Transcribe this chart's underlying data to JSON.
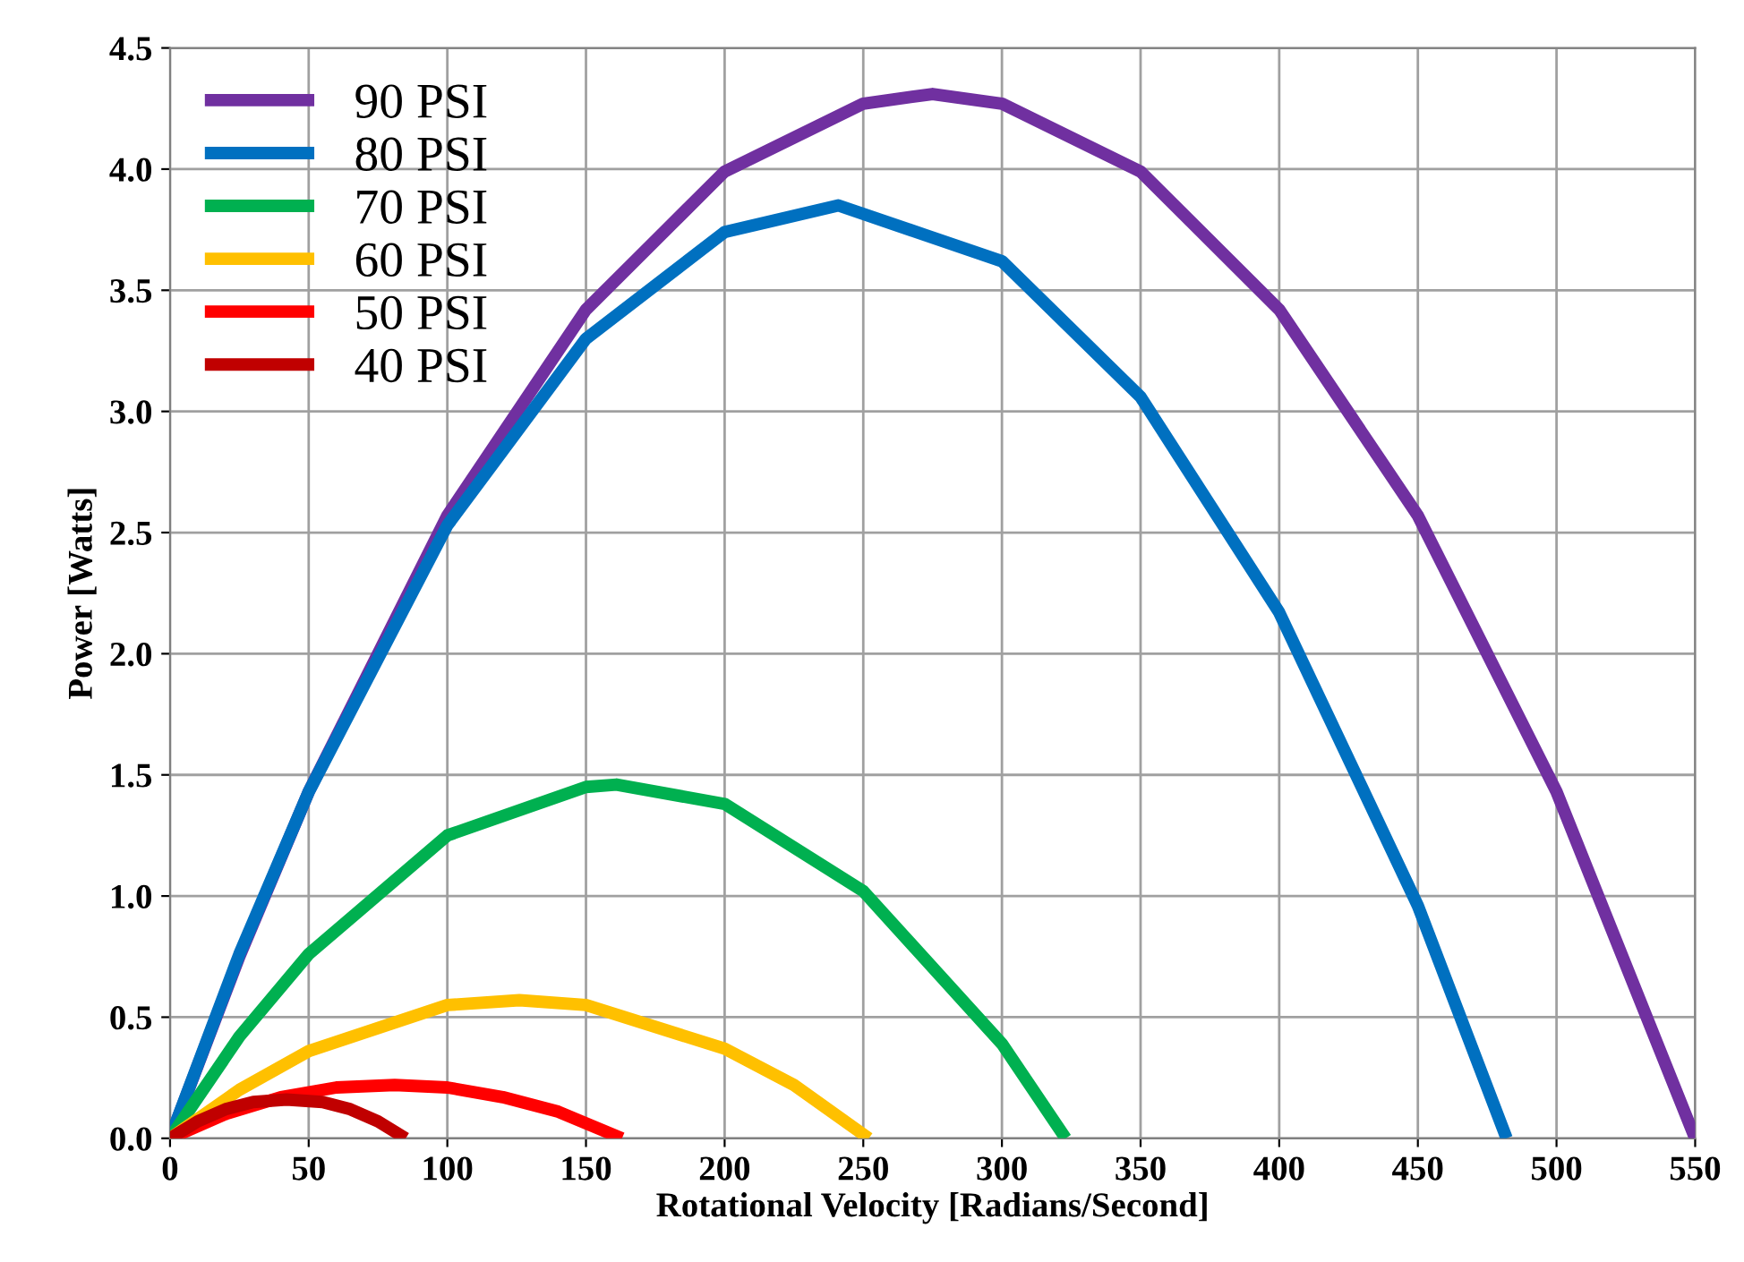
{
  "chart_data": {
    "type": "line",
    "xlabel": "Rotational Velocity [Radians/Second]",
    "ylabel": "Power [Watts]",
    "xlim": [
      0,
      550
    ],
    "xticks": [
      0,
      50,
      100,
      150,
      200,
      250,
      300,
      350,
      400,
      450,
      500,
      550
    ],
    "ylim": [
      0,
      4.5
    ],
    "yticks": [
      {
        "value": 0,
        "label": "0.0"
      },
      {
        "value": 0.5,
        "label": "0.5"
      },
      {
        "value": 1,
        "label": "1.0"
      },
      {
        "value": 1.5,
        "label": "1.5"
      },
      {
        "value": 2,
        "label": "2.0"
      },
      {
        "value": 2.5,
        "label": "2.5"
      },
      {
        "value": 3,
        "label": "3.0"
      },
      {
        "value": 3.5,
        "label": "3.5"
      },
      {
        "value": 4,
        "label": "4.0"
      },
      {
        "value": 4.5,
        "label": "4.5"
      }
    ],
    "grid": true,
    "legend": "top left",
    "marker": "none",
    "line_style": "solid",
    "series": [
      {
        "name": "90 PSI",
        "color": "#7030a0",
        "x": [
          0,
          25,
          50,
          100,
          150,
          200,
          250,
          275,
          300,
          350,
          400,
          450,
          500,
          550
        ],
        "values": [
          0,
          0.75,
          1.43,
          2.57,
          3.42,
          3.99,
          4.27,
          4.31,
          4.27,
          3.99,
          3.42,
          2.57,
          1.43,
          0
        ]
      },
      {
        "name": "80 PSI",
        "color": "#0070c0",
        "x": [
          0,
          25,
          50,
          100,
          150,
          200,
          241,
          300,
          350,
          400,
          450,
          482
        ],
        "values": [
          0,
          0.76,
          1.43,
          2.53,
          3.3,
          3.74,
          3.85,
          3.62,
          3.06,
          2.17,
          0.96,
          0
        ]
      },
      {
        "name": "70 PSI",
        "color": "#00b050",
        "x": [
          0,
          25,
          50,
          100,
          150,
          161,
          200,
          250,
          300,
          323
        ],
        "values": [
          0,
          0.42,
          0.76,
          1.25,
          1.45,
          1.46,
          1.38,
          1.02,
          0.39,
          0
        ]
      },
      {
        "name": "60 PSI",
        "color": "#ffc000",
        "x": [
          0,
          25,
          50,
          100,
          126,
          150,
          200,
          225,
          252
        ],
        "values": [
          0,
          0.2,
          0.36,
          0.55,
          0.57,
          0.55,
          0.37,
          0.22,
          0
        ]
      },
      {
        "name": "50 PSI",
        "color": "#ff0000",
        "x": [
          0,
          20,
          40,
          60,
          81,
          100,
          120,
          140,
          163
        ],
        "values": [
          0,
          0.1,
          0.17,
          0.21,
          0.22,
          0.21,
          0.17,
          0.11,
          0
        ]
      },
      {
        "name": "40 PSI",
        "color": "#c00000",
        "x": [
          0,
          10,
          20,
          30,
          42,
          55,
          65,
          75,
          85
        ],
        "values": [
          0,
          0.07,
          0.12,
          0.15,
          0.16,
          0.15,
          0.12,
          0.07,
          0
        ]
      }
    ]
  }
}
